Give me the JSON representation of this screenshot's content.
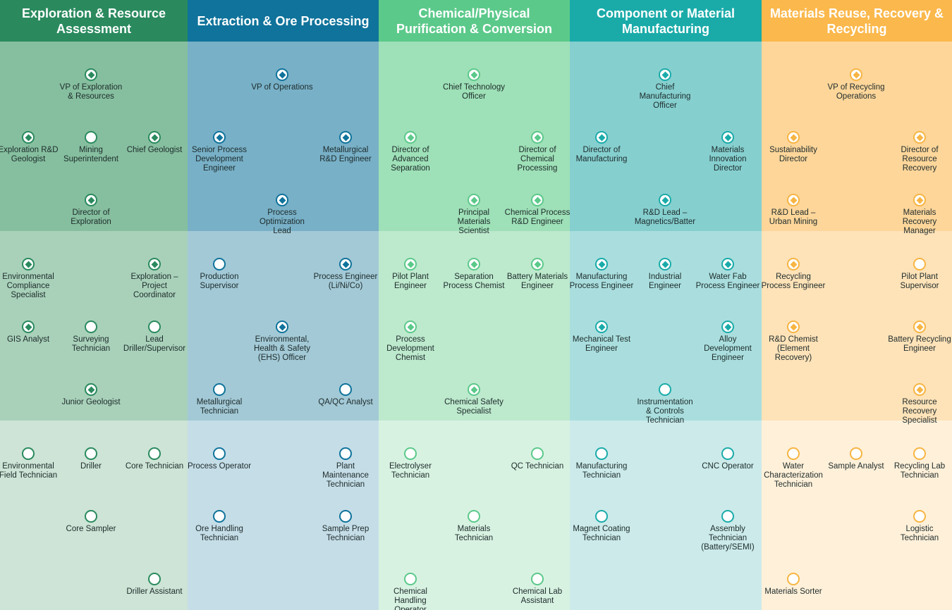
{
  "columns": [
    {
      "title": "Exploration & Resource\nAssessment",
      "nodes": [
        {
          "label": "VP of Exploration\n& Resources"
        },
        {
          "label": "Exploration R&D\nGeologist"
        },
        {
          "label": "Mining\nSuperintendent"
        },
        {
          "label": "Chief Geologist"
        },
        {
          "label": "Director of\nExploration"
        },
        {
          "label": "Environmental\nCompliance\nSpecialist"
        },
        {
          "label": "Exploration –\nProject\nCoordinator"
        },
        {
          "label": "GIS Analyst"
        },
        {
          "label": "Surveying\nTechnician"
        },
        {
          "label": "Lead\nDriller/Supervisor"
        },
        {
          "label": "Junior Geologist"
        },
        {
          "label": "Environmental\nField Technician"
        },
        {
          "label": "Driller"
        },
        {
          "label": "Core Technician"
        },
        {
          "label": "Core Sampler"
        },
        {
          "label": "Driller Assistant"
        }
      ]
    },
    {
      "title": "Extraction & Ore Processing",
      "nodes": [
        {
          "label": "VP of Operations"
        },
        {
          "label": "Senior Process\nDevelopment\nEngineer"
        },
        {
          "label": "Metallurgical\nR&D Engineer"
        },
        {
          "label": "Process\nOptimization\nLead"
        },
        {
          "label": "Production\nSupervisor"
        },
        {
          "label": "Process Engineer\n(Li/Ni/Co)"
        },
        {
          "label": "Environmental,\nHealth & Safety\n(EHS) Officer"
        },
        {
          "label": "Metallurgical\nTechnician"
        },
        {
          "label": "QA/QC Analyst"
        },
        {
          "label": "Process Operator"
        },
        {
          "label": "Plant\nMaintenance\nTechnician"
        },
        {
          "label": "Ore Handling\nTechnician"
        },
        {
          "label": "Sample Prep\nTechnician"
        }
      ]
    },
    {
      "title": "Chemical/Physical\nPurification & Conversion",
      "nodes": [
        {
          "label": "Chief Technology\nOfficer"
        },
        {
          "label": "Director of\nAdvanced\nSeparation"
        },
        {
          "label": "Director of\nChemical\nProcessing"
        },
        {
          "label": "Principal\nMaterials\nScientist"
        },
        {
          "label": "Chemical Process\nR&D Engineer"
        },
        {
          "label": "Pilot Plant\nEngineer"
        },
        {
          "label": "Separation\nProcess Chemist"
        },
        {
          "label": "Battery Materials\nEngineer"
        },
        {
          "label": "Process\nDevelopment\nChemist"
        },
        {
          "label": "Chemical Safety\nSpecialist"
        },
        {
          "label": "Electrolyser\nTechnician"
        },
        {
          "label": "QC Technician"
        },
        {
          "label": "Materials\nTechnician"
        },
        {
          "label": "Chemical\nHandling\nOperator"
        },
        {
          "label": "Chemical Lab\nAssistant"
        }
      ]
    },
    {
      "title": "Component or Material\nManufacturing",
      "nodes": [
        {
          "label": "Chief\nManufacturing\nOfficer"
        },
        {
          "label": "Director of\nManufacturing"
        },
        {
          "label": "Materials\nInnovation\nDirector"
        },
        {
          "label": "R&D Lead –\nMagnetics/Batter"
        },
        {
          "label": "Manufacturing\nProcess Engineer"
        },
        {
          "label": "Industrial\nEngineer"
        },
        {
          "label": "Water Fab\nProcess Engineer"
        },
        {
          "label": "Mechanical Test\nEngineer"
        },
        {
          "label": "Alloy\nDevelopment\nEngineer"
        },
        {
          "label": "Instrumentation\n& Controls\nTechnician"
        },
        {
          "label": "Manufacturing\nTechnician"
        },
        {
          "label": "CNC Operator"
        },
        {
          "label": "Magnet Coating\nTechnician"
        },
        {
          "label": "Assembly\nTechnician\n(Battery/SEMI)"
        }
      ]
    },
    {
      "title": "Materials Reuse, Recovery &\nRecycling",
      "nodes": [
        {
          "label": "VP of Recycling\nOperations"
        },
        {
          "label": "Sustainability\nDirector"
        },
        {
          "label": "Director of\nResource\nRecovery"
        },
        {
          "label": "R&D Lead –\nUrban Mining"
        },
        {
          "label": "Materials\nRecovery\nManager"
        },
        {
          "label": "Recycling\nProcess Engineer"
        },
        {
          "label": "Pilot Plant\nSupervisor"
        },
        {
          "label": "R&D Chemist\n(Element\nRecovery)"
        },
        {
          "label": "Battery Recycling\nEngineer"
        },
        {
          "label": "Resource\nRecovery\nSpecialist"
        },
        {
          "label": "Water\nCharacterization\nTechnician"
        },
        {
          "label": "Sample Analyst"
        },
        {
          "label": "Recycling Lab\nTechnician"
        },
        {
          "label": "Logistic\nTechnician"
        },
        {
          "label": "Materials Sorter"
        }
      ]
    }
  ]
}
